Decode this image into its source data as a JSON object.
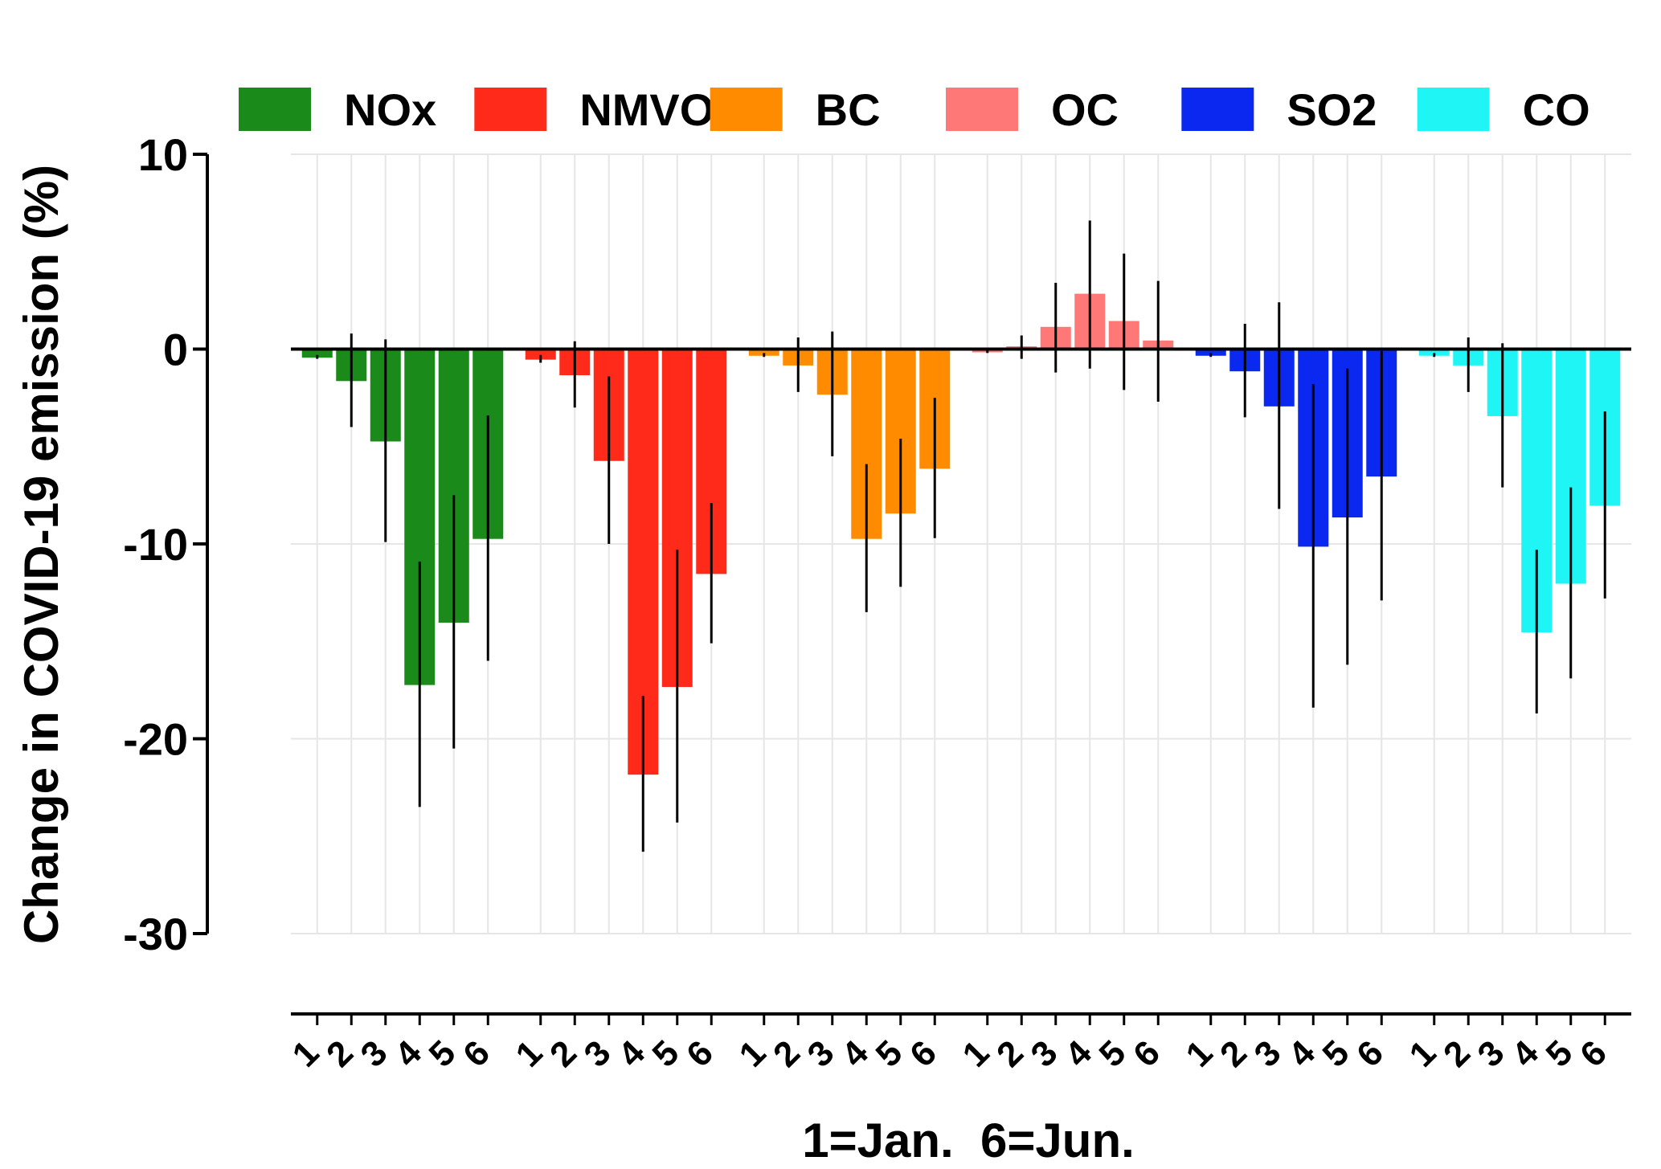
{
  "chart_data": {
    "type": "bar",
    "ylabel": "Change in COVID-19 emission (%)",
    "xlabel": "1=Jan.  6=Jun.",
    "ylim": [
      -30,
      10
    ],
    "yticks": [
      10,
      0,
      -10,
      -20,
      -30
    ],
    "categories": [
      "1",
      "2",
      "3",
      "4",
      "5",
      "6"
    ],
    "grid": true,
    "legend_position": "top",
    "series": [
      {
        "name": "NOx",
        "color": "#1a8a1a",
        "values": [
          -0.4,
          -1.6,
          -4.7,
          -17.2,
          -14.0,
          -9.7
        ],
        "error": [
          0.1,
          2.4,
          5.2,
          6.3,
          6.5,
          6.3
        ]
      },
      {
        "name": "NMVOC",
        "color": "#ff2a1a",
        "values": [
          -0.5,
          -1.3,
          -5.7,
          -21.8,
          -17.3,
          -11.5
        ],
        "error": [
          0.2,
          1.7,
          4.3,
          4.0,
          7.0,
          3.6
        ]
      },
      {
        "name": "BC",
        "color": "#ff8c00",
        "values": [
          -0.3,
          -0.8,
          -2.3,
          -9.7,
          -8.4,
          -6.1
        ],
        "error": [
          0.1,
          1.4,
          3.2,
          3.8,
          3.8,
          3.6
        ]
      },
      {
        "name": "OC",
        "color": "#ff7878",
        "values": [
          -0.1,
          0.1,
          1.1,
          2.8,
          1.4,
          0.4
        ],
        "error": [
          0.1,
          0.6,
          2.3,
          3.8,
          3.5,
          3.1
        ]
      },
      {
        "name": "SO2",
        "color": "#0a28f0",
        "values": [
          -0.3,
          -1.1,
          -2.9,
          -10.1,
          -8.6,
          -6.5
        ],
        "error": [
          0.1,
          2.4,
          5.3,
          8.3,
          7.6,
          6.4
        ]
      },
      {
        "name": "CO",
        "color": "#1ff5f5",
        "values": [
          -0.3,
          -0.8,
          -3.4,
          -14.5,
          -12.0,
          -8.0
        ],
        "error": [
          0.1,
          1.4,
          3.7,
          4.2,
          4.9,
          4.8
        ]
      }
    ]
  }
}
